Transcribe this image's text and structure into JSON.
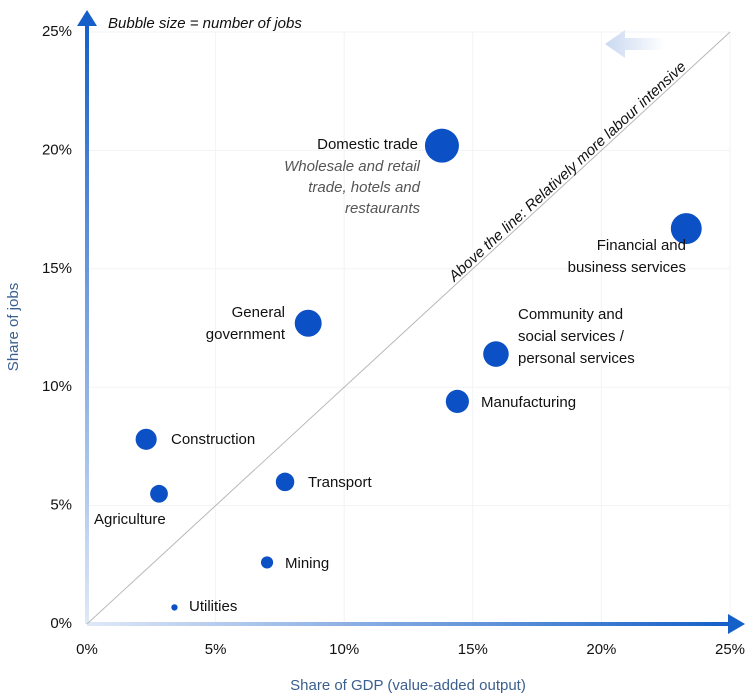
{
  "chart_data": {
    "type": "bubble",
    "annotation": "Bubble size = number of jobs",
    "diagonal_label": "Above the line: Relatively more labour intensive",
    "xlabel": "Share of GDP (value-added output)",
    "ylabel": "Share of jobs",
    "labels": [
      [
        "Domestic trade"
      ],
      [
        "Financial and",
        "business services"
      ],
      [
        "General",
        "government"
      ],
      [
        "Community and",
        "social services /",
        "personal services"
      ],
      [
        "Manufacturing"
      ],
      [
        "Construction"
      ],
      [
        "Agriculture"
      ],
      [
        "Transport"
      ],
      [
        "Mining"
      ],
      [
        "Utilities"
      ]
    ],
    "notes": [
      [
        "Wholesale and retail",
        "trade, hotels and",
        "restaurants"
      ],
      null,
      null,
      null,
      null,
      null,
      null,
      null,
      null,
      null
    ],
    "x": [
      13.8,
      23.3,
      8.6,
      15.9,
      14.4,
      2.3,
      2.8,
      7.7,
      7.0,
      3.4
    ],
    "values": [
      20.2,
      16.7,
      12.7,
      11.4,
      9.4,
      7.8,
      5.5,
      6.0,
      2.6,
      0.7
    ],
    "sizes": [
      20.2,
      16.7,
      12.7,
      11.4,
      9.4,
      7.8,
      5.5,
      6.0,
      2.6,
      0.7
    ],
    "color": "#0b50c4",
    "xlim": [
      0,
      25
    ],
    "ylim": [
      0,
      25
    ],
    "xticks": [
      {
        "value": 0,
        "label": "0%"
      },
      {
        "value": 5,
        "label": "5%"
      },
      {
        "value": 10,
        "label": "10%"
      },
      {
        "value": 15,
        "label": "15%"
      },
      {
        "value": 20,
        "label": "20%"
      },
      {
        "value": 25,
        "label": "25%"
      }
    ],
    "yticks": [
      {
        "value": 0,
        "label": "0%"
      },
      {
        "value": 5,
        "label": "5%"
      },
      {
        "value": 10,
        "label": "10%"
      },
      {
        "value": 15,
        "label": "15%"
      },
      {
        "value": 20,
        "label": "20%"
      },
      {
        "value": 25,
        "label": "25%"
      }
    ],
    "grid": true
  }
}
